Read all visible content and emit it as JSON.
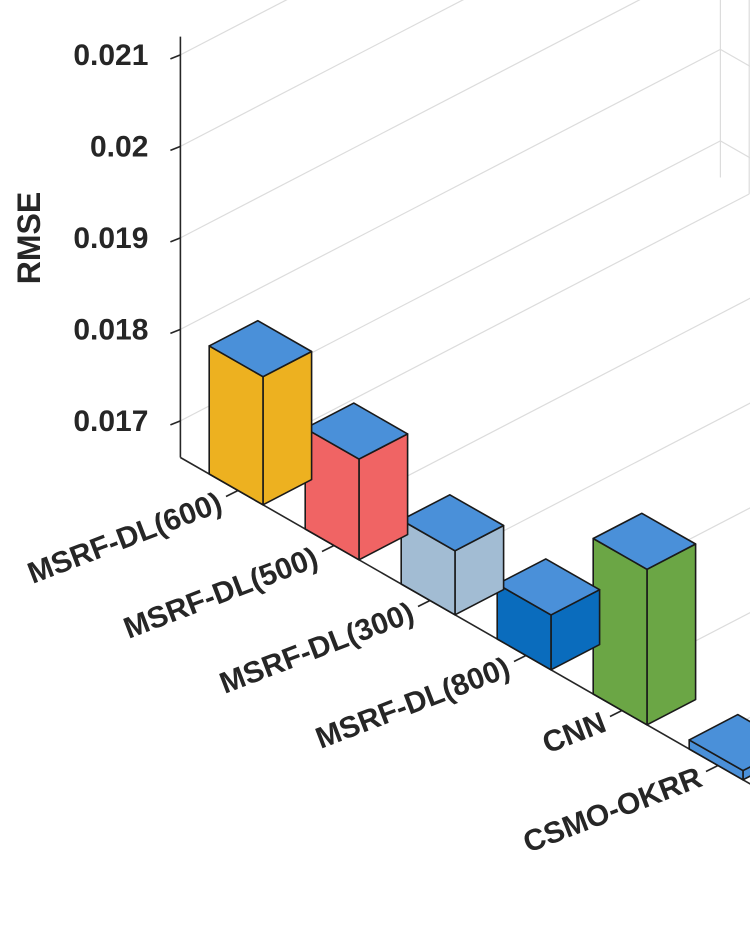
{
  "chart_data": {
    "type": "bar",
    "title": "",
    "xlabel": "",
    "ylabel": "RMSE",
    "ylim": [
      0.0166,
      0.0212
    ],
    "yticks": [
      "0.017",
      "0.018",
      "0.019",
      "0.02",
      "0.021"
    ],
    "ytick_values": [
      0.017,
      0.018,
      0.019,
      0.02,
      0.021
    ],
    "grid": true,
    "categories": [
      "MSRF-DL(600)",
      "MSRF-DL(500)",
      "MSRF-DL(300)",
      "MSRF-DL(800)",
      "CNN",
      "CSMO-OKRR"
    ],
    "values": [
      0.018,
      0.0177,
      0.0173,
      0.0172,
      0.0183,
      0.0167
    ],
    "colors": {
      "bars": [
        "#EDB120",
        "#F06464",
        "#A2BCD3",
        "#0A6CBD",
        "#6BA645",
        "#4A90D9"
      ],
      "bar_tops": [
        "#4A90D9",
        "#4A90D9",
        "#4A90D9",
        "#4A90D9",
        "#4A90D9",
        "#4A90D9"
      ]
    }
  }
}
